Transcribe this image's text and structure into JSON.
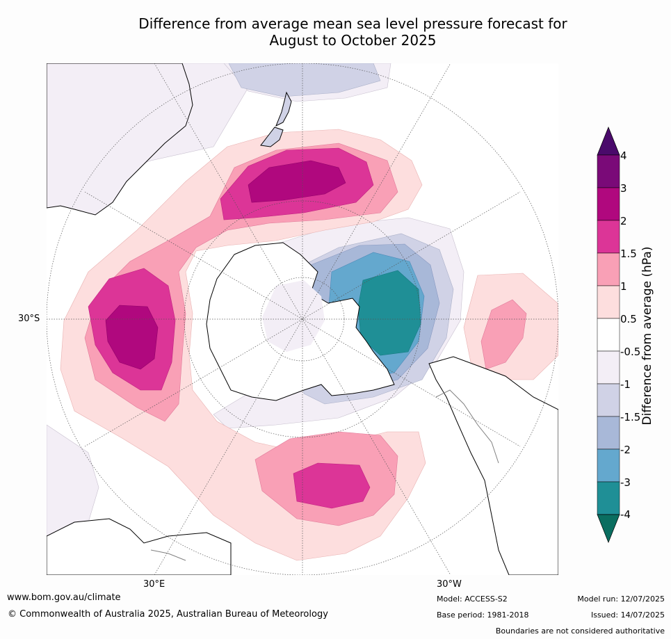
{
  "title_line1": "Difference from average mean sea level pressure forecast for",
  "title_line2": "August to October 2025",
  "map_labels": {
    "lat_30s": "30°S",
    "lon_30e": "30°E",
    "lon_30w": "30°W"
  },
  "colorbar": {
    "title": "Difference from average (hPa)",
    "ticks": [
      "4",
      "3",
      "2",
      "1.5",
      "1",
      "0.5",
      "-0.5",
      "-1",
      "-1.5",
      "-2",
      "-3",
      "-4"
    ],
    "colors": {
      "gt4": "#4a0a6b",
      "3_4": "#7a0a78",
      "2_3": "#b0087e",
      "1.5_2": "#dc3597",
      "1_1.5": "#f9a0b6",
      "0.5_1": "#fddede",
      "-0.5_0.5": "#ffffff",
      "-1_-0.5": "#f3eef6",
      "-1.5_-1": "#d0d2e6",
      "-2_-1.5": "#a8b8d8",
      "-3_-2": "#64a8ce",
      "-4_-3": "#1f8f96",
      "lt-4": "#0a6e60"
    }
  },
  "footer": {
    "url": "www.bom.gov.au/climate",
    "copyright": "© Commonwealth of Australia 2025, Australian Bureau of Meteorology",
    "model": "Model: ACCESS-S2",
    "base_period": "Base period: 1981-2018",
    "model_run": "Model run: 12/07/2025",
    "issued": "Issued: 14/07/2025",
    "disclaimer": "Boundaries are not considered authoritative"
  }
}
